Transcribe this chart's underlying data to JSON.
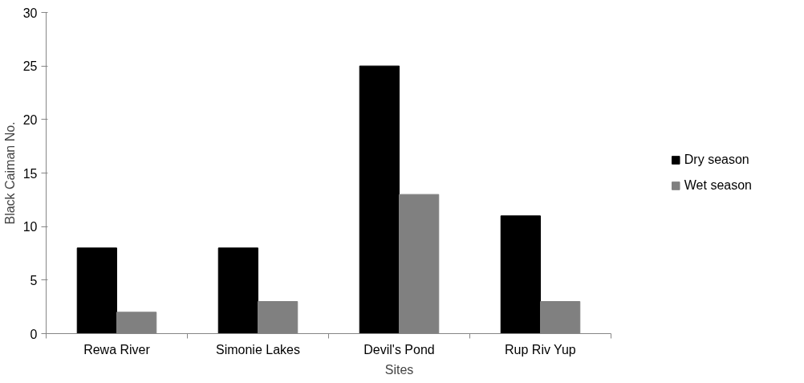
{
  "chart_data": {
    "type": "bar",
    "xlabel": "Sites",
    "ylabel": "Black Caiman No.",
    "categories": [
      "Rewa River",
      "Simonie Lakes",
      "Devil's Pond",
      "Rup Riv Yup"
    ],
    "series": [
      {
        "name": "Dry season",
        "color": "#000000",
        "values": [
          8,
          8,
          25,
          11
        ]
      },
      {
        "name": "Wet season",
        "color": "#808080",
        "values": [
          2,
          3,
          13,
          3
        ]
      }
    ],
    "ylim": [
      0,
      30
    ],
    "yticks": [
      0,
      5,
      10,
      15,
      20,
      25,
      30
    ],
    "grid": false,
    "legend": "right"
  }
}
